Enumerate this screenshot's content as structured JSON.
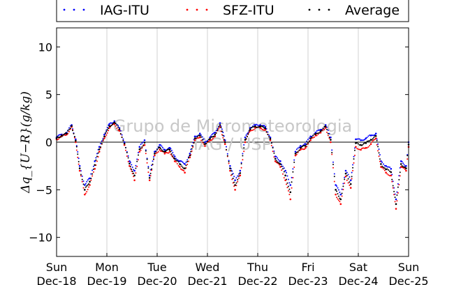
{
  "chart_data": {
    "type": "scatter",
    "title": "",
    "ylabel": "Δq_{U−R}(g/kg)",
    "xlabel": "",
    "ylim": [
      -12,
      12
    ],
    "xlim": [
      0,
      7
    ],
    "yticks": [
      -10,
      -5,
      0,
      5,
      10
    ],
    "xtick_labels": [
      [
        "Sun",
        "Dec-18"
      ],
      [
        "Mon",
        "Dec-19"
      ],
      [
        "Tue",
        "Dec-20"
      ],
      [
        "Wed",
        "Dec-21"
      ],
      [
        "Thu",
        "Dec-22"
      ],
      [
        "Fri",
        "Dec-23"
      ],
      [
        "Sat",
        "Dec-24"
      ],
      [
        "Sun",
        "Dec-25"
      ]
    ],
    "grid": "vertical lines at day boundaries",
    "legend_position": "top, above plot",
    "watermark": [
      "Grupo de Micrometeorologia",
      "IAG / USP"
    ],
    "x_units": "days since Sun Dec-18",
    "series": [
      {
        "name": "IAG-ITU",
        "color": "#0000ff",
        "x": [
          0.0,
          0.1,
          0.2,
          0.3,
          0.38,
          0.46,
          0.56,
          0.66,
          0.76,
          0.85,
          0.95,
          1.05,
          1.15,
          1.25,
          1.35,
          1.45,
          1.55,
          1.65,
          1.75,
          1.85,
          1.95,
          2.05,
          2.15,
          2.25,
          2.35,
          2.45,
          2.55,
          2.65,
          2.75,
          2.85,
          2.95,
          3.05,
          3.15,
          3.25,
          3.35,
          3.45,
          3.55,
          3.65,
          3.75,
          3.85,
          3.95,
          4.05,
          4.15,
          4.25,
          4.35,
          4.45,
          4.55,
          4.65,
          4.75,
          4.85,
          4.95,
          5.05,
          5.15,
          5.25,
          5.35,
          5.45,
          5.55,
          5.65,
          5.75,
          5.85,
          5.95,
          6.05,
          6.15,
          6.25,
          6.35,
          6.45,
          6.55,
          6.65,
          6.75,
          6.85,
          6.95,
          7.0
        ],
        "y": [
          0.5,
          0.8,
          1.0,
          1.8,
          0.3,
          -2.5,
          -4.5,
          -3.8,
          -2.0,
          -0.5,
          0.8,
          1.9,
          2.2,
          1.5,
          0.0,
          -2.0,
          -3.0,
          -0.5,
          0.2,
          -3.5,
          -1.0,
          -0.3,
          -0.8,
          -0.6,
          -1.5,
          -2.0,
          -2.3,
          -1.2,
          0.6,
          0.9,
          0.0,
          0.5,
          1.0,
          2.0,
          0.2,
          -2.5,
          -4.0,
          -3.0,
          0.5,
          1.5,
          1.8,
          1.8,
          1.6,
          0.5,
          -1.5,
          -2.0,
          -3.0,
          -4.5,
          -1.0,
          -0.4,
          -0.2,
          0.6,
          1.0,
          1.3,
          1.8,
          0.5,
          -4.5,
          -5.5,
          -3.0,
          -4.0,
          0.3,
          0.2,
          0.4,
          0.7,
          0.9,
          -2.0,
          -2.5,
          -2.8,
          -6.0,
          -2.0,
          -2.5,
          0.0
        ]
      },
      {
        "name": "SFZ-ITU",
        "color": "#ff0000",
        "x": [
          0.0,
          0.1,
          0.2,
          0.3,
          0.38,
          0.46,
          0.56,
          0.66,
          0.76,
          0.85,
          0.95,
          1.05,
          1.15,
          1.25,
          1.35,
          1.45,
          1.55,
          1.65,
          1.75,
          1.85,
          1.95,
          2.05,
          2.15,
          2.25,
          2.35,
          2.45,
          2.55,
          2.65,
          2.75,
          2.85,
          2.95,
          3.05,
          3.15,
          3.25,
          3.35,
          3.45,
          3.55,
          3.65,
          3.75,
          3.85,
          3.95,
          4.05,
          4.15,
          4.25,
          4.35,
          4.45,
          4.55,
          4.65,
          4.75,
          4.85,
          4.95,
          5.05,
          5.15,
          5.25,
          5.35,
          5.45,
          5.55,
          5.65,
          5.75,
          5.85,
          5.95,
          6.05,
          6.15,
          6.25,
          6.35,
          6.45,
          6.55,
          6.65,
          6.75,
          6.85,
          6.95,
          7.0
        ],
        "y": [
          0.3,
          0.6,
          0.8,
          1.6,
          0.0,
          -3.0,
          -5.5,
          -4.5,
          -2.8,
          -1.0,
          0.4,
          1.5,
          1.9,
          1.2,
          -0.3,
          -2.5,
          -4.0,
          -1.0,
          -0.3,
          -4.0,
          -1.4,
          -0.8,
          -1.2,
          -1.0,
          -2.0,
          -2.6,
          -3.2,
          -1.6,
          0.2,
          0.5,
          -0.4,
          0.2,
          0.6,
          1.6,
          -0.2,
          -3.0,
          -5.0,
          -3.5,
          0.0,
          1.2,
          1.5,
          1.5,
          1.3,
          0.2,
          -2.0,
          -2.6,
          -4.0,
          -6.0,
          -1.4,
          -0.8,
          -0.6,
          0.2,
          0.7,
          1.0,
          1.5,
          0.0,
          -5.5,
          -6.5,
          -3.6,
          -4.8,
          -0.5,
          -0.8,
          -0.6,
          -0.2,
          0.4,
          -2.6,
          -3.2,
          -3.5,
          -7.0,
          -2.6,
          -3.0,
          -0.5
        ]
      },
      {
        "name": "Average",
        "color": "#000000",
        "x": [
          0.0,
          0.1,
          0.2,
          0.3,
          0.38,
          0.46,
          0.56,
          0.66,
          0.76,
          0.85,
          0.95,
          1.05,
          1.15,
          1.25,
          1.35,
          1.45,
          1.55,
          1.65,
          1.75,
          1.85,
          1.95,
          2.05,
          2.15,
          2.25,
          2.35,
          2.45,
          2.55,
          2.65,
          2.75,
          2.85,
          2.95,
          3.05,
          3.15,
          3.25,
          3.35,
          3.45,
          3.55,
          3.65,
          3.75,
          3.85,
          3.95,
          4.05,
          4.15,
          4.25,
          4.35,
          4.45,
          4.55,
          4.65,
          4.75,
          4.85,
          4.95,
          5.05,
          5.15,
          5.25,
          5.35,
          5.45,
          5.55,
          5.65,
          5.75,
          5.85,
          5.95,
          6.05,
          6.15,
          6.25,
          6.35,
          6.45,
          6.55,
          6.65,
          6.75,
          6.85,
          6.95,
          7.0
        ],
        "y": [
          0.4,
          0.7,
          0.9,
          1.7,
          0.15,
          -2.75,
          -5.0,
          -4.15,
          -2.4,
          -0.75,
          0.6,
          1.7,
          2.05,
          1.35,
          -0.15,
          -2.25,
          -3.5,
          -0.75,
          -0.05,
          -3.75,
          -1.2,
          -0.55,
          -1.0,
          -0.8,
          -1.75,
          -2.3,
          -2.75,
          -1.4,
          0.4,
          0.7,
          -0.2,
          0.35,
          0.8,
          1.8,
          0.0,
          -2.75,
          -4.5,
          -3.25,
          0.25,
          1.35,
          1.65,
          1.65,
          1.45,
          0.35,
          -1.75,
          -2.3,
          -3.5,
          -5.25,
          -1.2,
          -0.6,
          -0.4,
          0.4,
          0.85,
          1.15,
          1.65,
          0.25,
          -5.0,
          -6.0,
          -3.3,
          -4.4,
          -0.1,
          -0.3,
          -0.1,
          0.25,
          0.65,
          -2.3,
          -2.85,
          -3.15,
          -6.5,
          -2.3,
          -2.75,
          -0.25
        ]
      }
    ]
  }
}
